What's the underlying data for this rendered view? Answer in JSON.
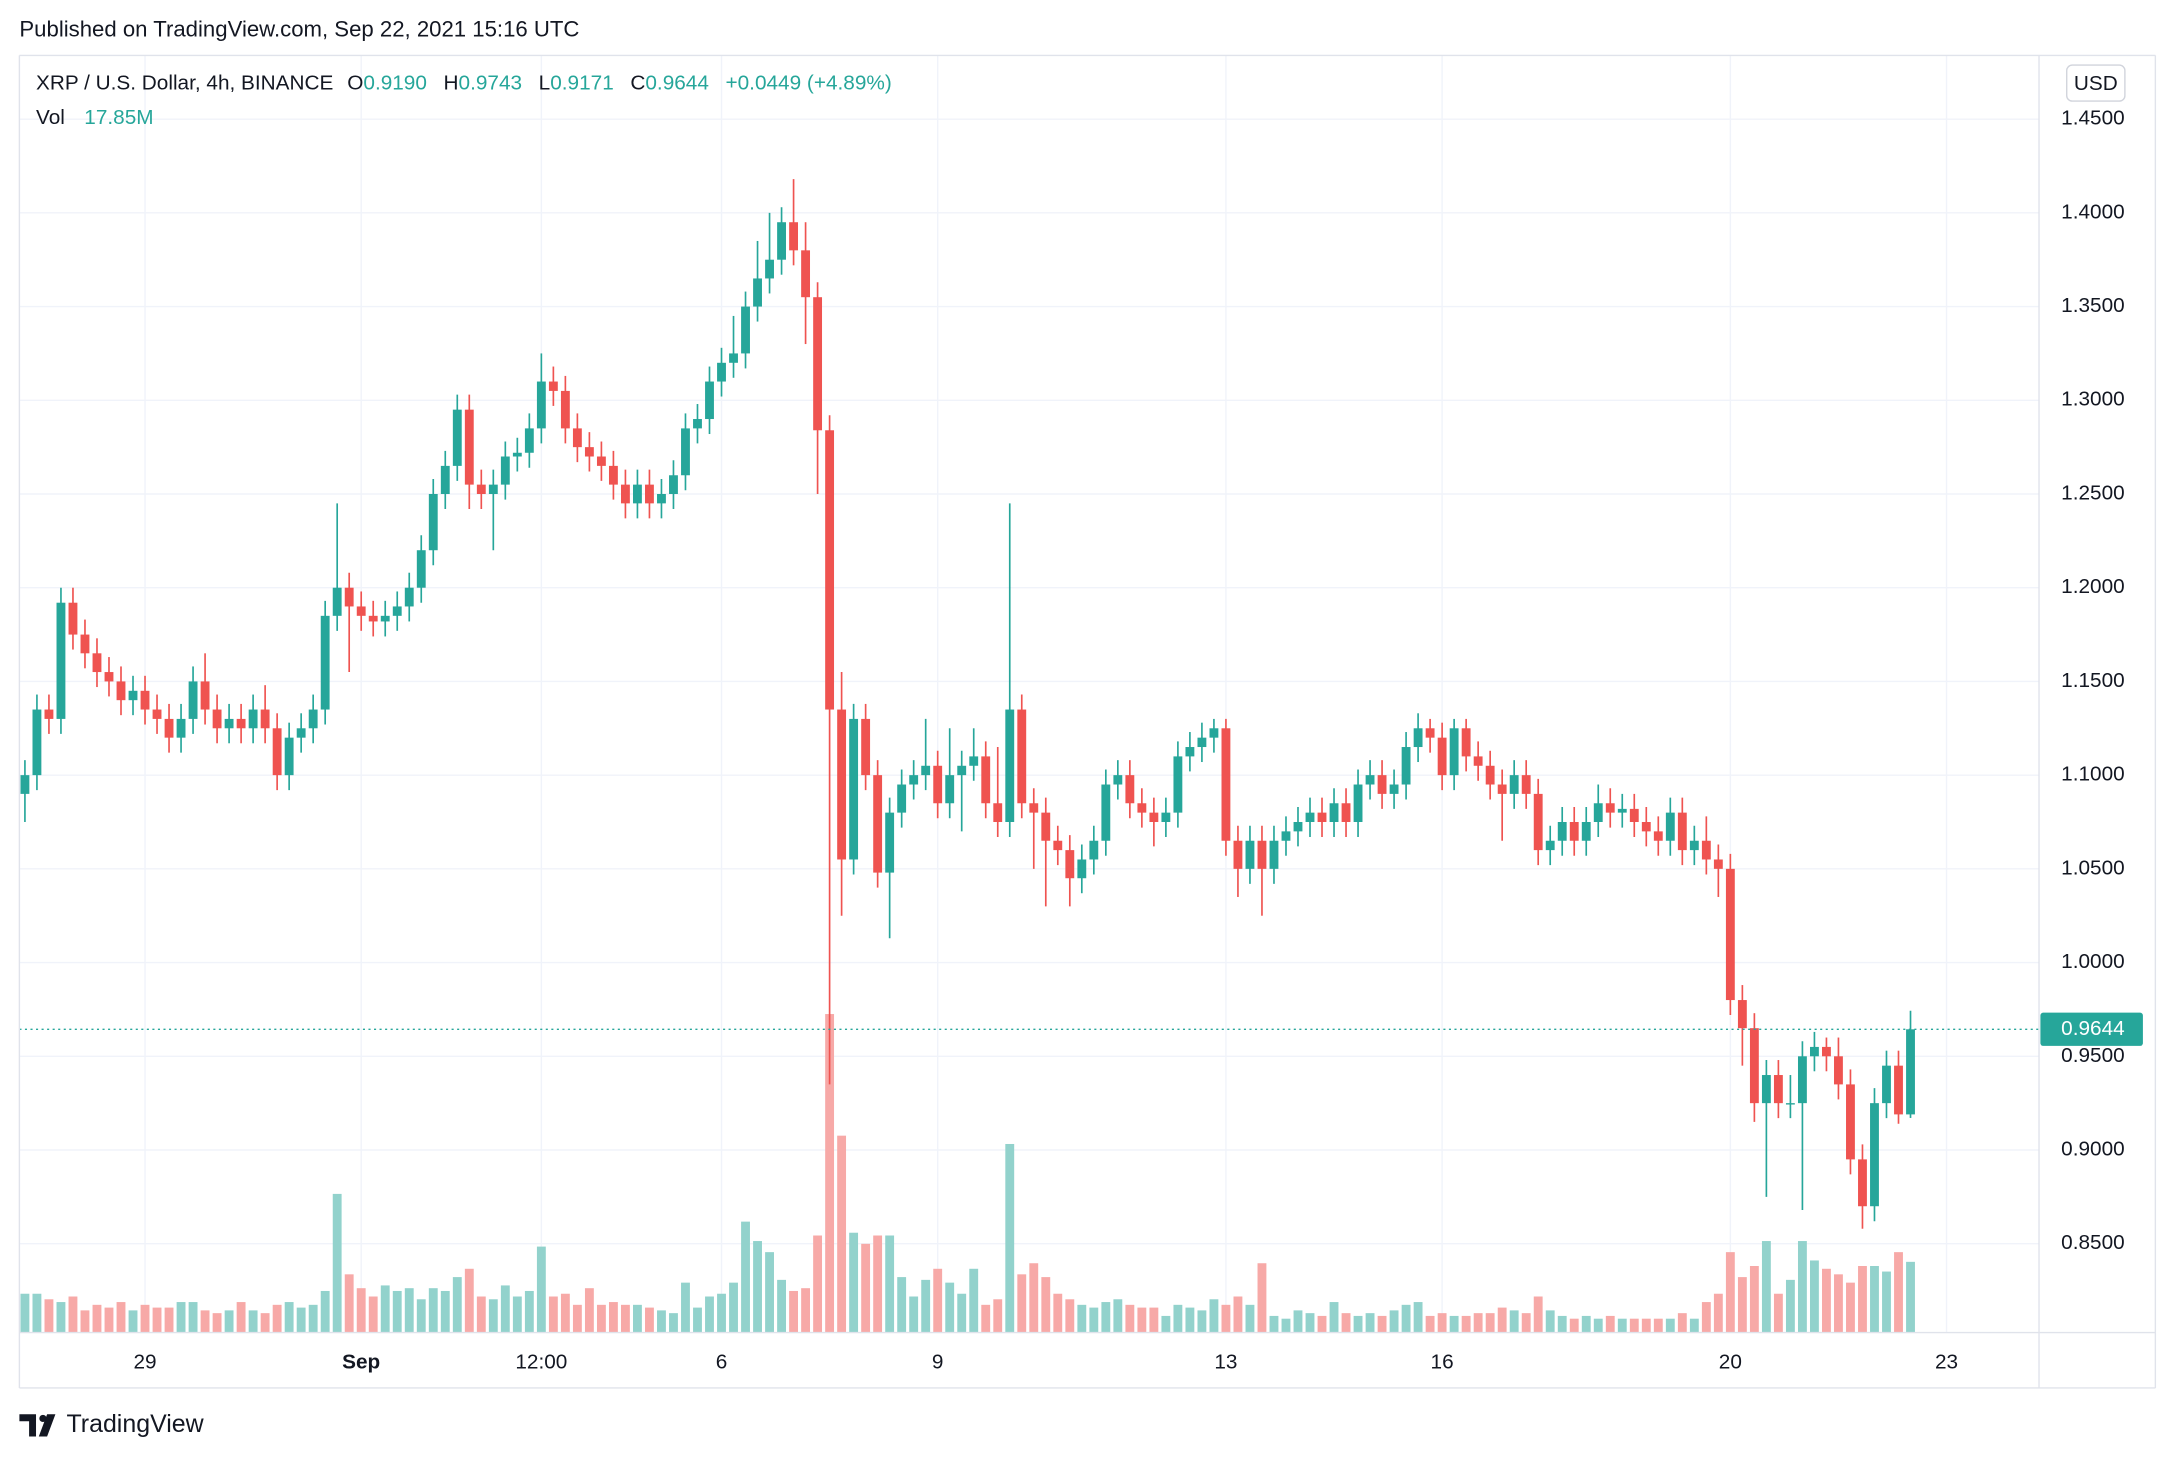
{
  "chart_data": {
    "type": "candlestick",
    "published": "Published on TradingView.com, Sep 22, 2021 15:16 UTC",
    "symbol": "XRP / U.S. Dollar, 4h, BINANCE",
    "ohlc": [
      {
        "key": "O",
        "value": "0.9190"
      },
      {
        "key": "H",
        "value": "0.9743"
      },
      {
        "key": "L",
        "value": "0.9171"
      },
      {
        "key": "C",
        "value": "0.9644"
      }
    ],
    "change": "+0.0449 (+4.89%)",
    "volume_title": "Vol",
    "volume_value": "17.85M",
    "currency": "USD",
    "last_price_label": "0.9644",
    "brand": "TradingView",
    "up_color": "#26a69a",
    "down_color": "#ef5350",
    "up_volume_color": "#92d2cc",
    "down_volume_color": "#f7a9a7",
    "grid": true,
    "xlim": [
      -0.46,
      167.7
    ],
    "xticks": [
      {
        "value": 10,
        "label": "29"
      },
      {
        "value": 28,
        "label": "Sep"
      },
      {
        "value": 43,
        "label": "12:00"
      },
      {
        "value": 58,
        "label": "6"
      },
      {
        "value": 76,
        "label": "9"
      },
      {
        "value": 100,
        "label": "13"
      },
      {
        "value": 118,
        "label": "16"
      },
      {
        "value": 142,
        "label": "20"
      },
      {
        "value": 160,
        "label": "23"
      }
    ],
    "ylim": [
      0.8026,
      1.484
    ],
    "yticks": [
      {
        "value": 0.85,
        "label": "0.8500"
      },
      {
        "value": 0.9,
        "label": "0.9000"
      },
      {
        "value": 0.95,
        "label": "0.9500"
      },
      {
        "value": 1.0,
        "label": "1.0000"
      },
      {
        "value": 1.05,
        "label": "1.0500"
      },
      {
        "value": 1.1,
        "label": "1.1000"
      },
      {
        "value": 1.15,
        "label": "1.1500"
      },
      {
        "value": 1.2,
        "label": "1.2000"
      },
      {
        "value": 1.25,
        "label": "1.2500"
      },
      {
        "value": 1.3,
        "label": "1.3000"
      },
      {
        "value": 1.35,
        "label": "1.3500"
      },
      {
        "value": 1.4,
        "label": "1.4000"
      },
      {
        "value": 1.45,
        "label": "1.4500"
      }
    ],
    "open": [
      1.09,
      1.1,
      1.135,
      1.13,
      1.192,
      1.175,
      1.165,
      1.155,
      1.15,
      1.14,
      1.145,
      1.135,
      1.13,
      1.12,
      1.13,
      1.15,
      1.135,
      1.125,
      1.13,
      1.125,
      1.135,
      1.125,
      1.1,
      1.12,
      1.125,
      1.135,
      1.185,
      1.2,
      1.19,
      1.185,
      1.182,
      1.185,
      1.19,
      1.2,
      1.22,
      1.25,
      1.265,
      1.295,
      1.255,
      1.25,
      1.255,
      1.27,
      1.272,
      1.285,
      1.31,
      1.305,
      1.285,
      1.275,
      1.27,
      1.265,
      1.255,
      1.245,
      1.255,
      1.245,
      1.25,
      1.26,
      1.285,
      1.29,
      1.31,
      1.32,
      1.325,
      1.35,
      1.365,
      1.375,
      1.395,
      1.38,
      1.355,
      1.284,
      1.135,
      1.055,
      1.13,
      1.1,
      1.048,
      1.08,
      1.095,
      1.1,
      1.105,
      1.085,
      1.1,
      1.105,
      1.11,
      1.085,
      1.075,
      1.135,
      1.085,
      1.08,
      1.065,
      1.06,
      1.045,
      1.055,
      1.065,
      1.095,
      1.1,
      1.085,
      1.08,
      1.075,
      1.08,
      1.11,
      1.115,
      1.12,
      1.125,
      1.065,
      1.05,
      1.065,
      1.05,
      1.065,
      1.07,
      1.075,
      1.08,
      1.075,
      1.085,
      1.075,
      1.095,
      1.1,
      1.09,
      1.095,
      1.115,
      1.125,
      1.12,
      1.1,
      1.125,
      1.11,
      1.105,
      1.095,
      1.09,
      1.1,
      1.09,
      1.06,
      1.065,
      1.075,
      1.065,
      1.075,
      1.085,
      1.08,
      1.082,
      1.075,
      1.07,
      1.065,
      1.08,
      1.06,
      1.065,
      1.055,
      1.05,
      0.98,
      0.965,
      0.925,
      0.94,
      0.925,
      0.925,
      0.95,
      0.955,
      0.95,
      0.935,
      0.895,
      0.87,
      0.925,
      0.945,
      0.919
    ],
    "high": [
      1.108,
      1.143,
      1.143,
      1.2,
      1.2,
      1.183,
      1.173,
      1.163,
      1.158,
      1.153,
      1.153,
      1.143,
      1.138,
      1.138,
      1.158,
      1.165,
      1.143,
      1.138,
      1.138,
      1.143,
      1.148,
      1.133,
      1.128,
      1.133,
      1.143,
      1.193,
      1.245,
      1.208,
      1.198,
      1.193,
      1.193,
      1.198,
      1.208,
      1.228,
      1.258,
      1.273,
      1.303,
      1.303,
      1.263,
      1.263,
      1.278,
      1.28,
      1.293,
      1.325,
      1.318,
      1.313,
      1.293,
      1.283,
      1.278,
      1.273,
      1.263,
      1.263,
      1.263,
      1.258,
      1.268,
      1.293,
      1.298,
      1.318,
      1.328,
      1.345,
      1.358,
      1.385,
      1.4,
      1.403,
      1.418,
      1.395,
      1.363,
      1.292,
      1.155,
      1.138,
      1.138,
      1.108,
      1.088,
      1.103,
      1.108,
      1.13,
      1.113,
      1.125,
      1.113,
      1.125,
      1.118,
      1.115,
      1.245,
      1.143,
      1.093,
      1.088,
      1.073,
      1.068,
      1.063,
      1.073,
      1.103,
      1.108,
      1.108,
      1.093,
      1.088,
      1.088,
      1.118,
      1.123,
      1.128,
      1.13,
      1.13,
      1.073,
      1.073,
      1.073,
      1.073,
      1.078,
      1.083,
      1.088,
      1.088,
      1.093,
      1.093,
      1.103,
      1.108,
      1.108,
      1.103,
      1.123,
      1.133,
      1.13,
      1.128,
      1.13,
      1.13,
      1.118,
      1.113,
      1.103,
      1.108,
      1.108,
      1.098,
      1.073,
      1.083,
      1.083,
      1.083,
      1.095,
      1.093,
      1.09,
      1.09,
      1.083,
      1.078,
      1.088,
      1.088,
      1.073,
      1.078,
      1.063,
      1.058,
      0.988,
      0.973,
      0.948,
      0.948,
      0.94,
      0.958,
      0.963,
      0.96,
      0.96,
      0.943,
      0.903,
      0.933,
      0.953,
      0.953,
      0.9743
    ],
    "low": [
      1.075,
      1.092,
      1.122,
      1.122,
      1.167,
      1.157,
      1.147,
      1.142,
      1.132,
      1.132,
      1.127,
      1.122,
      1.112,
      1.112,
      1.122,
      1.127,
      1.117,
      1.117,
      1.117,
      1.117,
      1.117,
      1.092,
      1.092,
      1.112,
      1.117,
      1.127,
      1.177,
      1.155,
      1.177,
      1.174,
      1.174,
      1.177,
      1.182,
      1.192,
      1.212,
      1.242,
      1.257,
      1.242,
      1.242,
      1.22,
      1.247,
      1.262,
      1.264,
      1.277,
      1.297,
      1.277,
      1.267,
      1.262,
      1.257,
      1.247,
      1.237,
      1.237,
      1.237,
      1.237,
      1.242,
      1.252,
      1.277,
      1.282,
      1.302,
      1.312,
      1.317,
      1.342,
      1.357,
      1.367,
      1.372,
      1.33,
      1.25,
      0.935,
      1.025,
      1.047,
      1.092,
      1.04,
      1.013,
      1.072,
      1.087,
      1.092,
      1.077,
      1.077,
      1.07,
      1.097,
      1.077,
      1.067,
      1.067,
      1.077,
      1.05,
      1.03,
      1.052,
      1.03,
      1.037,
      1.047,
      1.057,
      1.087,
      1.077,
      1.072,
      1.062,
      1.067,
      1.072,
      1.102,
      1.107,
      1.112,
      1.057,
      1.035,
      1.042,
      1.025,
      1.042,
      1.057,
      1.062,
      1.067,
      1.067,
      1.067,
      1.067,
      1.067,
      1.087,
      1.082,
      1.082,
      1.087,
      1.107,
      1.112,
      1.092,
      1.092,
      1.102,
      1.097,
      1.087,
      1.065,
      1.082,
      1.082,
      1.052,
      1.052,
      1.057,
      1.057,
      1.057,
      1.067,
      1.072,
      1.072,
      1.067,
      1.062,
      1.057,
      1.057,
      1.052,
      1.052,
      1.047,
      1.035,
      0.972,
      0.945,
      0.915,
      0.875,
      0.917,
      0.917,
      0.868,
      0.942,
      0.942,
      0.927,
      0.887,
      0.858,
      0.862,
      0.917,
      0.914,
      0.9171
    ],
    "close": [
      1.1,
      1.135,
      1.13,
      1.192,
      1.175,
      1.165,
      1.155,
      1.15,
      1.14,
      1.145,
      1.135,
      1.13,
      1.12,
      1.13,
      1.15,
      1.135,
      1.125,
      1.13,
      1.125,
      1.135,
      1.125,
      1.1,
      1.12,
      1.125,
      1.135,
      1.185,
      1.2,
      1.19,
      1.185,
      1.182,
      1.185,
      1.19,
      1.2,
      1.22,
      1.25,
      1.265,
      1.295,
      1.255,
      1.25,
      1.255,
      1.27,
      1.272,
      1.285,
      1.31,
      1.305,
      1.285,
      1.275,
      1.27,
      1.265,
      1.255,
      1.245,
      1.255,
      1.245,
      1.25,
      1.26,
      1.285,
      1.29,
      1.31,
      1.32,
      1.325,
      1.35,
      1.365,
      1.375,
      1.395,
      1.38,
      1.355,
      1.284,
      1.135,
      1.055,
      1.13,
      1.1,
      1.048,
      1.08,
      1.095,
      1.1,
      1.105,
      1.085,
      1.1,
      1.105,
      1.11,
      1.085,
      1.075,
      1.135,
      1.085,
      1.08,
      1.065,
      1.06,
      1.045,
      1.055,
      1.065,
      1.095,
      1.1,
      1.085,
      1.08,
      1.075,
      1.08,
      1.11,
      1.115,
      1.12,
      1.125,
      1.065,
      1.05,
      1.065,
      1.05,
      1.065,
      1.07,
      1.075,
      1.08,
      1.075,
      1.085,
      1.075,
      1.095,
      1.1,
      1.09,
      1.095,
      1.115,
      1.125,
      1.12,
      1.1,
      1.125,
      1.11,
      1.105,
      1.095,
      1.09,
      1.1,
      1.09,
      1.06,
      1.065,
      1.075,
      1.065,
      1.075,
      1.085,
      1.08,
      1.082,
      1.075,
      1.07,
      1.065,
      1.08,
      1.06,
      1.065,
      1.055,
      1.05,
      0.98,
      0.965,
      0.925,
      0.94,
      0.925,
      0.925,
      0.95,
      0.955,
      0.95,
      0.935,
      0.895,
      0.87,
      0.925,
      0.945,
      0.919,
      0.9644
    ],
    "volume": [
      9.8,
      9.8,
      8.4,
      7.7,
      9.1,
      5.6,
      7.0,
      6.3,
      7.7,
      5.6,
      7.0,
      6.3,
      6.3,
      7.7,
      7.7,
      5.6,
      4.9,
      5.6,
      7.7,
      5.6,
      4.9,
      7.0,
      7.7,
      6.3,
      7.0,
      10.5,
      35.0,
      14.7,
      11.2,
      9.1,
      11.9,
      10.5,
      11.2,
      8.4,
      11.2,
      10.5,
      14.0,
      16.1,
      9.1,
      8.4,
      11.9,
      9.1,
      10.5,
      21.7,
      9.1,
      9.8,
      7.0,
      11.2,
      7.0,
      7.7,
      7.0,
      7.0,
      6.3,
      5.6,
      4.9,
      12.6,
      6.3,
      9.1,
      9.8,
      12.6,
      28.0,
      23.1,
      20.3,
      13.3,
      10.5,
      11.2,
      24.5,
      80.4,
      49.7,
      25.2,
      22.4,
      24.5,
      24.5,
      14.0,
      9.1,
      13.3,
      16.1,
      12.6,
      9.8,
      16.1,
      7.0,
      8.4,
      47.6,
      14.7,
      17.5,
      14.0,
      9.8,
      8.4,
      7.0,
      6.3,
      7.7,
      8.4,
      7.0,
      6.3,
      6.3,
      4.2,
      7.0,
      6.3,
      5.6,
      8.4,
      7.0,
      9.1,
      7.0,
      17.5,
      4.2,
      3.5,
      5.6,
      4.9,
      4.2,
      7.7,
      4.9,
      4.2,
      4.9,
      4.2,
      5.6,
      7.0,
      7.7,
      4.2,
      4.9,
      4.2,
      4.2,
      4.9,
      4.9,
      6.3,
      5.6,
      4.9,
      9.1,
      5.6,
      4.2,
      3.5,
      4.2,
      3.5,
      4.2,
      3.5,
      3.5,
      3.5,
      3.5,
      3.5,
      4.9,
      3.5,
      7.7,
      9.8,
      20.3,
      14.0,
      16.8,
      23.1,
      9.8,
      13.3,
      23.1,
      18.2,
      16.1,
      14.7,
      12.6,
      16.8,
      16.8,
      15.4,
      20.3,
      17.85
    ]
  }
}
